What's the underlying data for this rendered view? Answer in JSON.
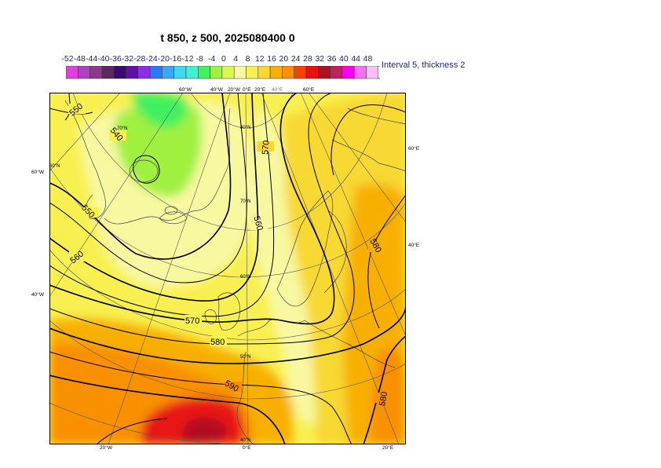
{
  "title": "t 850, z 500, 2025080400 0",
  "legend": {
    "labels": [
      "-52",
      "-48",
      "-44",
      "-40",
      "-36",
      "-32",
      "-28",
      "-24",
      "-20",
      "-16",
      "-12",
      "-8",
      "-4",
      "0",
      "4",
      "8",
      "12",
      "16",
      "20",
      "24",
      "28",
      "32",
      "36",
      "40",
      "44",
      "48"
    ],
    "colors": [
      "#e040e0",
      "#b040c0",
      "#8a3a8a",
      "#5a2a60",
      "#3a0a6e",
      "#5e10a8",
      "#8a2ee8",
      "#2a7af8",
      "#3aa8f8",
      "#40d8f0",
      "#40f0d0",
      "#40f060",
      "#a0f040",
      "#d8f850",
      "#f8f8a0",
      "#f8f050",
      "#f8d830",
      "#f8b000",
      "#f89000",
      "#f84000",
      "#e81010",
      "#b01020",
      "#c02060",
      "#f800f0",
      "#f870f8",
      "#f8c0f8"
    ],
    "interval_text": "Interval 5, thickness 2"
  },
  "map": {
    "contour_labels": [
      "550",
      "540",
      "550",
      "560",
      "560",
      "570",
      "570",
      "580",
      "580",
      "590",
      "580"
    ],
    "grid_labels": {
      "top": [
        "60°W",
        "40°W",
        "20°W",
        "0°E",
        "20°E",
        "40°E",
        "60°E"
      ],
      "bottom": [
        "20°W",
        "0°E",
        "20°E"
      ],
      "left": [
        "60°W",
        "40°W"
      ],
      "right": [
        "60°E",
        "40°E"
      ],
      "interior": [
        "70°N",
        "60°N",
        "80°N",
        "70°N",
        "60°N",
        "50°N",
        "40°N"
      ]
    }
  }
}
